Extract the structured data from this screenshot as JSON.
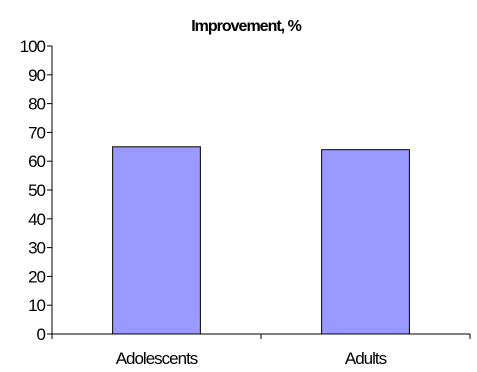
{
  "chart_data": {
    "type": "bar",
    "title": "Improvement, %",
    "xlabel": "",
    "ylabel": "",
    "categories": [
      "Adolescents",
      "Adults"
    ],
    "values": [
      65,
      64
    ],
    "ylim": [
      0,
      100
    ],
    "yticks": [
      0,
      10,
      20,
      30,
      40,
      50,
      60,
      70,
      80,
      90,
      100
    ],
    "grid": false,
    "legend": "none",
    "colors": {
      "bar_fill": "#9999ff",
      "bar_stroke": "#000000",
      "axis": "#000000"
    }
  }
}
